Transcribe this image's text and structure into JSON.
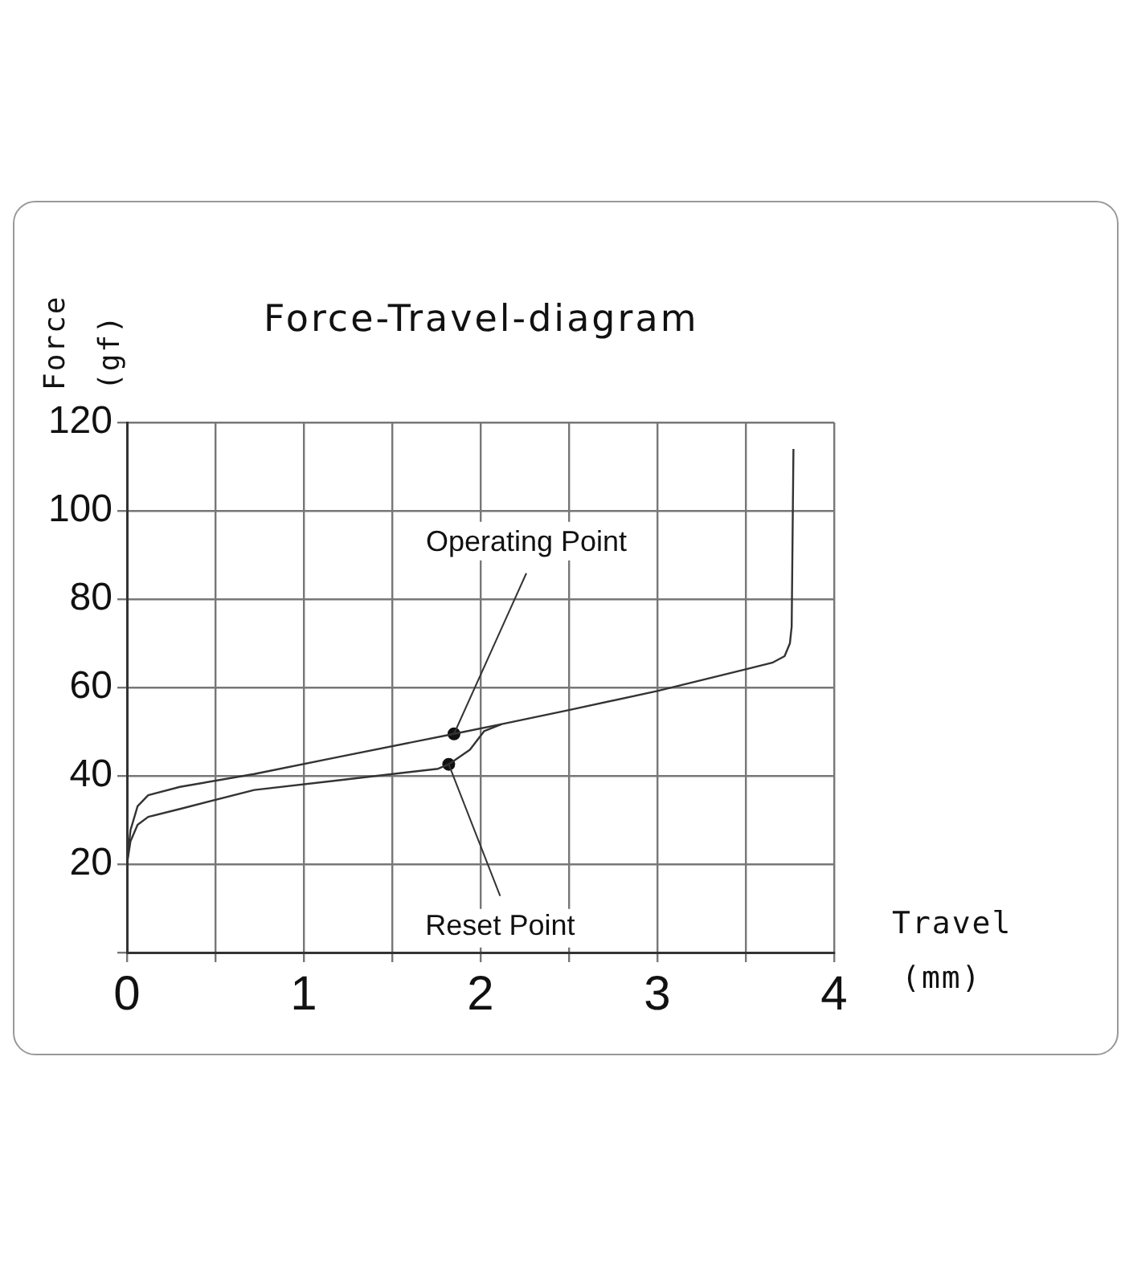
{
  "chart_data": {
    "type": "line",
    "title": "Force-Travel-diagram",
    "xlabel": "Travel (mm)",
    "ylabel": "Force (gf)",
    "xlim": [
      0,
      4
    ],
    "ylim": [
      0,
      120
    ],
    "xticks": [
      0,
      {
        "value": 0.5,
        "label": null
      },
      1,
      {
        "value": 1.5,
        "label": null
      },
      2,
      {
        "value": 2.5,
        "label": null
      },
      3,
      {
        "value": 3.5,
        "label": null
      },
      4
    ],
    "yticks": [
      {
        "value": 0,
        "label": null
      },
      20,
      40,
      60,
      80,
      100,
      120
    ],
    "grid": true,
    "legend": false,
    "series": [
      {
        "color": "#333333",
        "marker": "none",
        "x": [
          0,
          0.02,
          0.06,
          0.12,
          0.3,
          0.72,
          1.2,
          1.85,
          2.12,
          2.5,
          3.0,
          3.5,
          3.65,
          3.72,
          3.75,
          3.76,
          3.77
        ],
        "values": [
          20,
          27.7,
          33.1,
          35.6,
          37.5,
          40.4,
          44.3,
          49.5,
          51.7,
          54.9,
          59.2,
          64.1,
          65.6,
          67.1,
          70,
          73.8,
          114
        ]
      },
      {
        "color": "#333333",
        "marker": "none",
        "x": [
          0,
          0.02,
          0.06,
          0.12,
          0.3,
          0.72,
          1.2,
          1.76,
          1.82,
          1.94,
          2.02,
          2.12
        ],
        "values": [
          20,
          25.2,
          28.9,
          30.7,
          32.5,
          36.8,
          39.0,
          41.6,
          42.6,
          45.9,
          50.1,
          51.7
        ]
      },
      {
        "type": "scatter",
        "color": "#111111",
        "marker": "circle",
        "x": [
          1.85,
          1.82
        ],
        "values": [
          49.5,
          42.6
        ]
      }
    ],
    "annotations": [
      {
        "text": "Operating Point",
        "x": 1.85,
        "y": 49.5
      },
      {
        "text": "Reset Point",
        "x": 1.82,
        "y": 42.6
      }
    ]
  }
}
